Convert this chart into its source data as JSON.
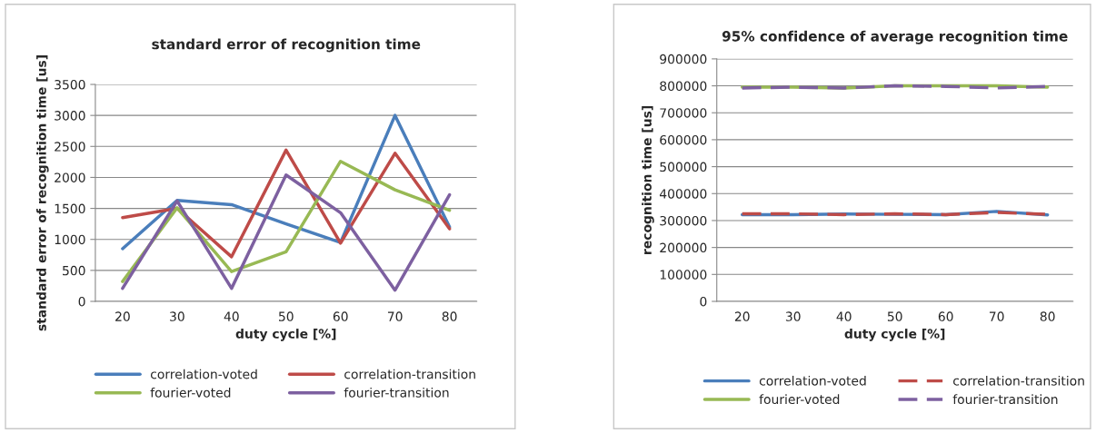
{
  "chart_data": [
    {
      "type": "line",
      "title": "standard error of recognition time",
      "xlabel": "duty cycle [%]",
      "ylabel": "standard error of recognition time [us]",
      "categories": [
        "20",
        "30",
        "40",
        "50",
        "60",
        "70",
        "80"
      ],
      "ylim": [
        0,
        3500
      ],
      "yticks": [
        0,
        500,
        1000,
        1500,
        2000,
        2500,
        3000,
        3500
      ],
      "grid": "y",
      "legend": "bottom",
      "series": [
        {
          "name": "correlation-voted",
          "color": "#4a7ebb",
          "values": [
            850,
            1630,
            1560,
            1250,
            950,
            3000,
            1200
          ]
        },
        {
          "name": "correlation-transition",
          "color": "#be4b48",
          "values": [
            1350,
            1500,
            720,
            2440,
            940,
            2390,
            1170
          ]
        },
        {
          "name": "fourier-voted",
          "color": "#98b954",
          "values": [
            320,
            1510,
            480,
            800,
            2260,
            1800,
            1470
          ]
        },
        {
          "name": "fourier-transition",
          "color": "#7d60a0",
          "values": [
            210,
            1620,
            210,
            2040,
            1430,
            180,
            1720
          ]
        }
      ]
    },
    {
      "type": "line",
      "title": "95% confidence of average recognition time",
      "xlabel": "duty cycle [%]",
      "ylabel": "recognition time [us]",
      "categories": [
        "20",
        "30",
        "40",
        "50",
        "60",
        "70",
        "80"
      ],
      "ylim": [
        0,
        900000
      ],
      "yticks": [
        0,
        100000,
        200000,
        300000,
        400000,
        500000,
        600000,
        700000,
        800000,
        900000
      ],
      "grid": "y",
      "legend": "bottom",
      "series": [
        {
          "name": "correlation-voted",
          "color": "#4a7ebb",
          "line_style": "solid",
          "values": [
            322000,
            322000,
            324000,
            323000,
            322000,
            334000,
            321000
          ]
        },
        {
          "name": "correlation-transition",
          "color": "#be4b48",
          "line_style": "dashed",
          "values": [
            325000,
            325000,
            322000,
            325000,
            322000,
            330000,
            323000
          ]
        },
        {
          "name": "fourier-voted",
          "color": "#98b954",
          "line_style": "solid",
          "values": [
            795000,
            795000,
            792000,
            800000,
            800000,
            800000,
            795000
          ]
        },
        {
          "name": "fourier-transition",
          "color": "#7d60a0",
          "line_style": "dashed",
          "values": [
            792000,
            795000,
            792000,
            800000,
            798000,
            792000,
            798000
          ]
        }
      ]
    }
  ]
}
